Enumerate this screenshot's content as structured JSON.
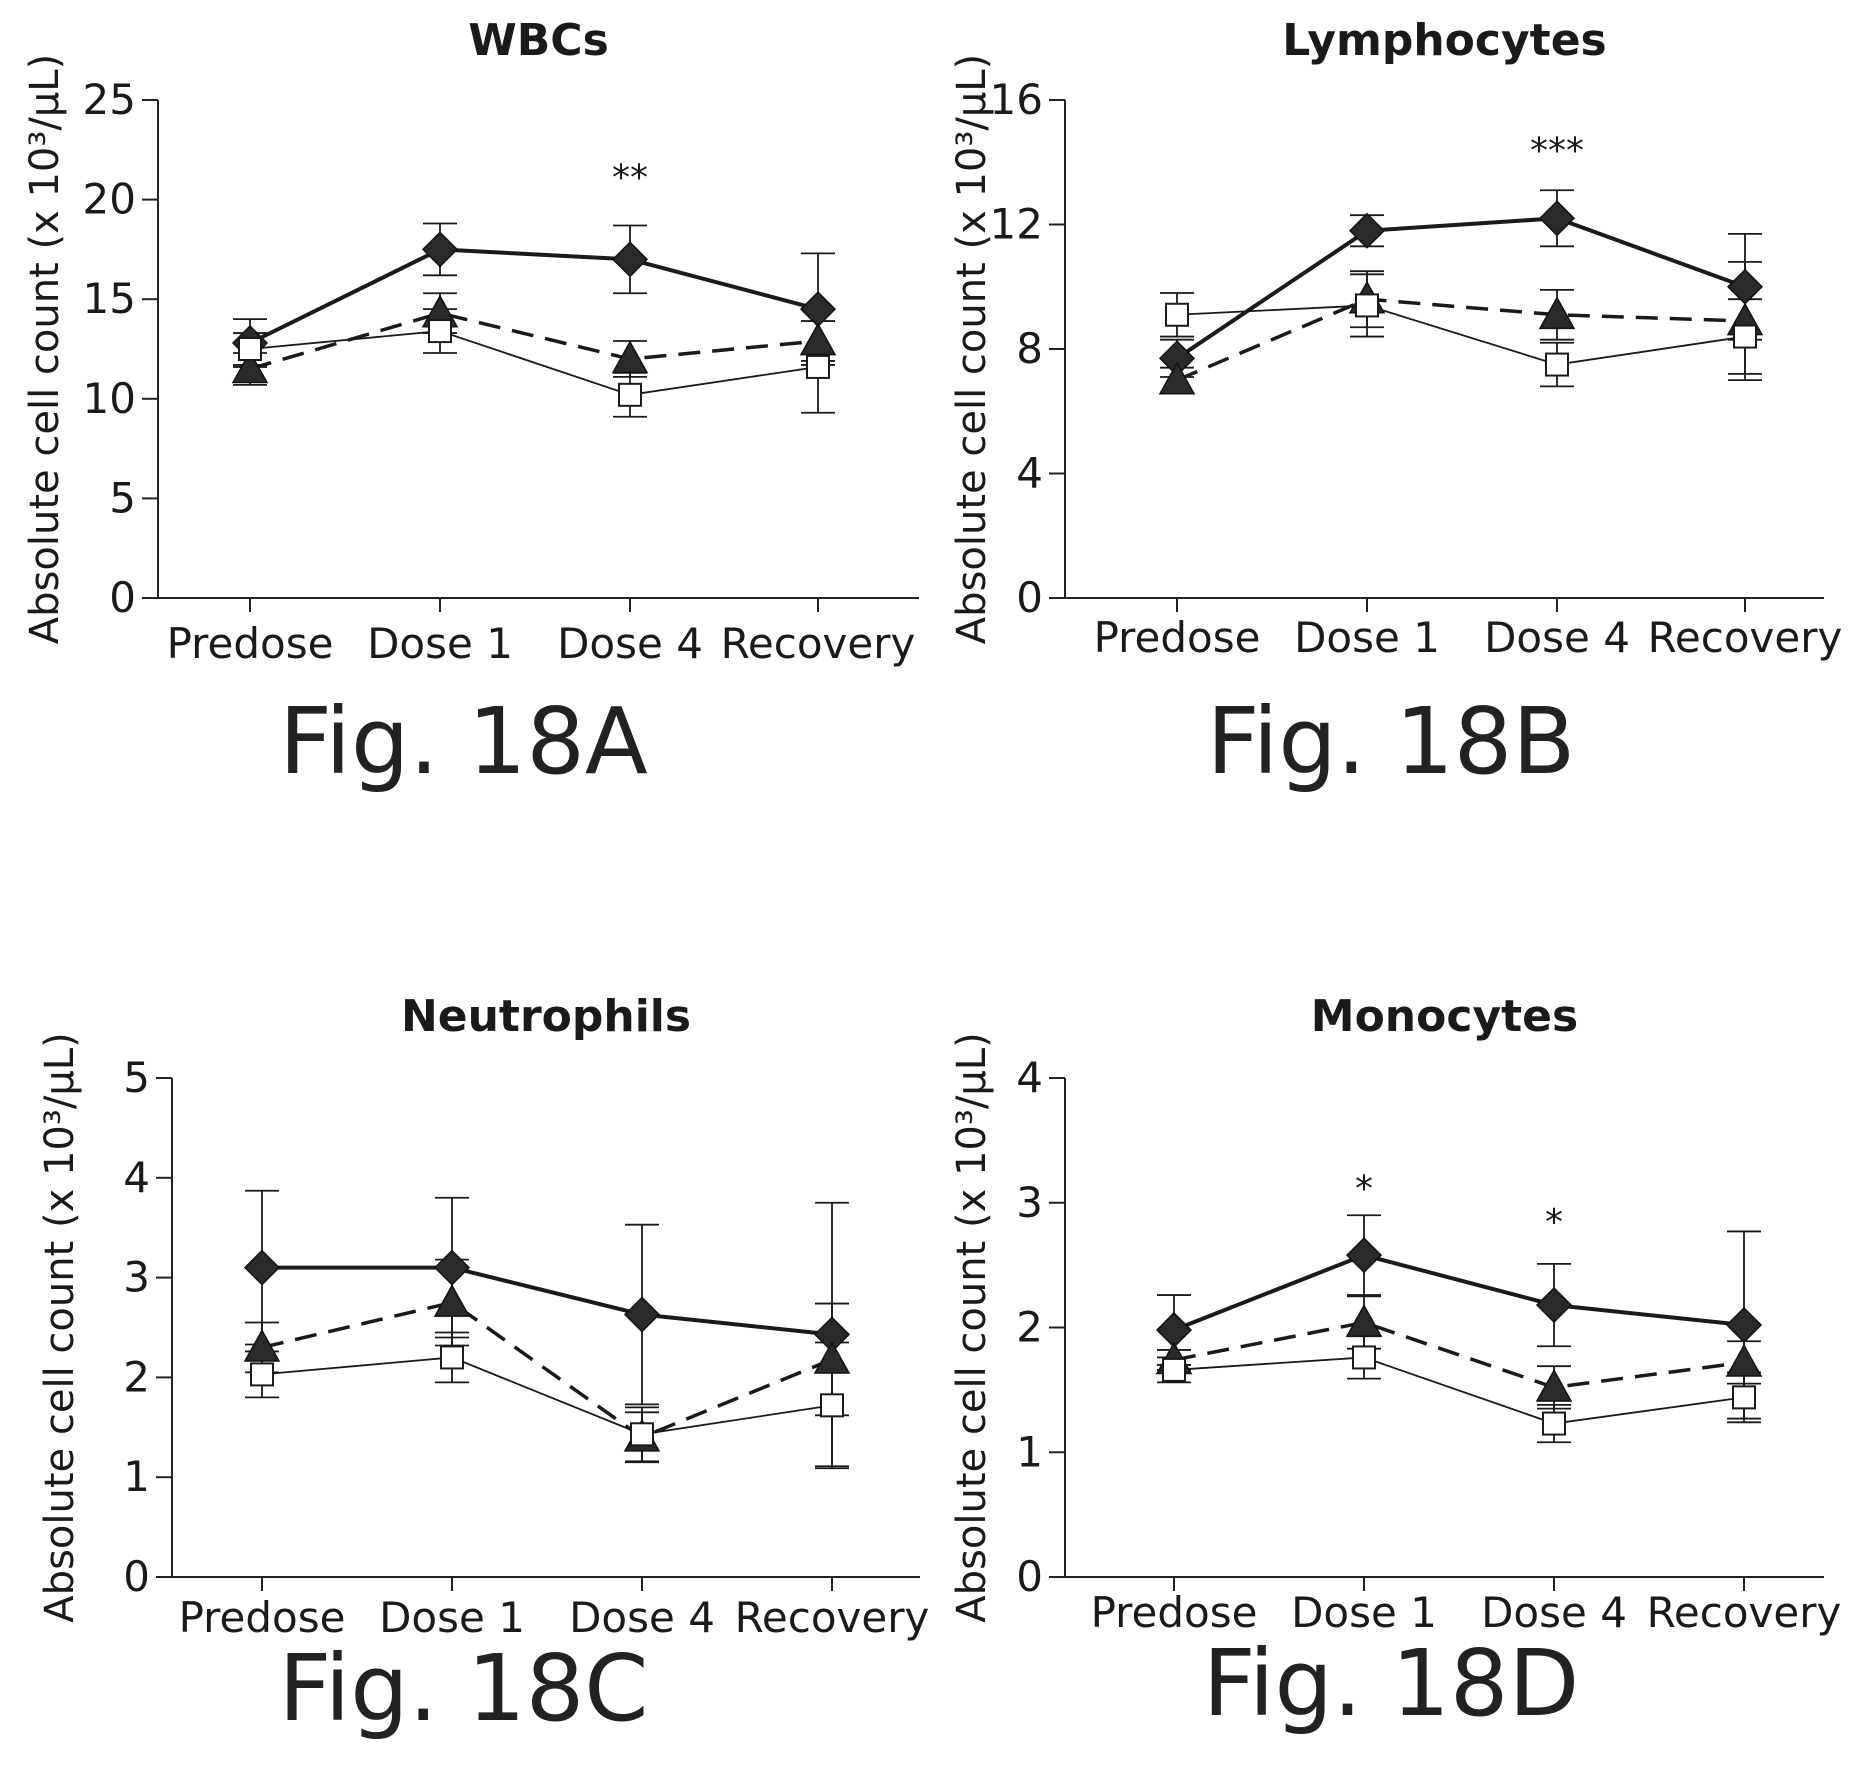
{
  "charts": [
    {
      "id": "A",
      "caption": "Fig. 18A",
      "chart_data": {
        "type": "line",
        "title": "WBCs",
        "ylabel": "Absolute cell count (x 10³/µL)",
        "categories": [
          "Predose",
          "Dose 1",
          "Dose 4",
          "Recovery"
        ],
        "ylim": [
          0,
          25
        ],
        "yticks": [
          "0",
          "5",
          "10",
          "15",
          "20",
          "25"
        ],
        "grid": false,
        "series": [
          {
            "marker": "diamond",
            "line": "solid-thick",
            "values": [
              12.8,
              17.5,
              17.0,
              14.5
            ],
            "err": [
              1.2,
              1.3,
              1.7,
              2.8
            ]
          },
          {
            "marker": "triangle",
            "line": "dashed",
            "values": [
              11.5,
              14.3,
              12.0,
              12.9
            ],
            "err": [
              0.8,
              1.0,
              0.9,
              1.0
            ]
          },
          {
            "marker": "square",
            "line": "solid-thin",
            "values": [
              12.5,
              13.4,
              10.2,
              11.6
            ],
            "err": [
              0.8,
              1.1,
              1.1,
              2.3
            ]
          }
        ],
        "annotations": [
          {
            "category": "Dose 4",
            "text": "**",
            "y": 20.5
          }
        ]
      }
    },
    {
      "id": "B",
      "caption": "Fig. 18B",
      "chart_data": {
        "type": "line",
        "title": "Lymphocytes",
        "ylabel": "Absolute cell count (x 10³/µL)",
        "categories": [
          "Predose",
          "Dose 1",
          "Dose 4",
          "Recovery"
        ],
        "ylim": [
          0,
          16
        ],
        "yticks": [
          "0",
          "4",
          "8",
          "12",
          "16"
        ],
        "grid": false,
        "series": [
          {
            "marker": "diamond",
            "line": "solid-thick",
            "values": [
              7.7,
              11.8,
              12.2,
              10.0
            ],
            "err": [
              0.6,
              0.5,
              0.9,
              1.7
            ]
          },
          {
            "marker": "triangle",
            "line": "dashed",
            "values": [
              7.0,
              9.6,
              9.1,
              8.9
            ],
            "err": [
              0.4,
              0.9,
              0.8,
              1.9
            ]
          },
          {
            "marker": "square",
            "line": "solid-thin",
            "values": [
              9.1,
              9.4,
              7.5,
              8.4
            ],
            "err": [
              0.7,
              1.0,
              0.7,
              1.2
            ]
          }
        ],
        "annotations": [
          {
            "category": "Dose 4",
            "text": "***",
            "y": 14.0
          }
        ]
      }
    },
    {
      "id": "C",
      "caption": "Fig. 18C",
      "chart_data": {
        "type": "line",
        "title": "Neutrophils",
        "ylabel": "Absolute cell count (x 10³/µL)",
        "categories": [
          "Predose",
          "Dose 1",
          "Dose 4",
          "Recovery"
        ],
        "ylim": [
          0,
          5
        ],
        "yticks": [
          "0",
          "1",
          "2",
          "3",
          "4",
          "5"
        ],
        "grid": false,
        "series": [
          {
            "marker": "diamond",
            "line": "solid-thick",
            "values": [
              3.1,
              3.1,
              2.63,
              2.43
            ],
            "err": [
              0.77,
              0.7,
              0.9,
              1.32
            ]
          },
          {
            "marker": "triangle",
            "line": "dashed",
            "values": [
              2.3,
              2.75,
              1.4,
              2.18
            ],
            "err": [
              0.25,
              0.43,
              0.25,
              0.56
            ]
          },
          {
            "marker": "square",
            "line": "solid-thin",
            "values": [
              2.03,
              2.2,
              1.43,
              1.72
            ],
            "err": [
              0.23,
              0.25,
              0.27,
              0.63
            ]
          }
        ],
        "annotations": []
      }
    },
    {
      "id": "D",
      "caption": "Fig. 18D",
      "chart_data": {
        "type": "line",
        "title": "Monocytes",
        "ylabel": "Absolute cell count (x 10³/µL)",
        "categories": [
          "Predose",
          "Dose 1",
          "Dose 4",
          "Recovery"
        ],
        "ylim": [
          0,
          4
        ],
        "yticks": [
          "0",
          "1",
          "2",
          "3",
          "4"
        ],
        "grid": false,
        "series": [
          {
            "marker": "diamond",
            "line": "solid-thick",
            "values": [
              1.98,
              2.58,
              2.18,
              2.02
            ],
            "err": [
              0.28,
              0.32,
              0.33,
              0.75
            ]
          },
          {
            "marker": "triangle",
            "line": "dashed",
            "values": [
              1.74,
              2.04,
              1.52,
              1.72
            ],
            "err": [
              0.08,
              0.21,
              0.17,
              0.17
            ]
          },
          {
            "marker": "square",
            "line": "solid-thin",
            "values": [
              1.66,
              1.76,
              1.23,
              1.44
            ],
            "err": [
              0.1,
              0.17,
              0.15,
              0.2
            ]
          }
        ],
        "annotations": [
          {
            "category": "Dose 1",
            "text": "*",
            "y": 3.02
          },
          {
            "category": "Dose 4",
            "text": "*",
            "y": 2.75
          }
        ]
      }
    }
  ]
}
